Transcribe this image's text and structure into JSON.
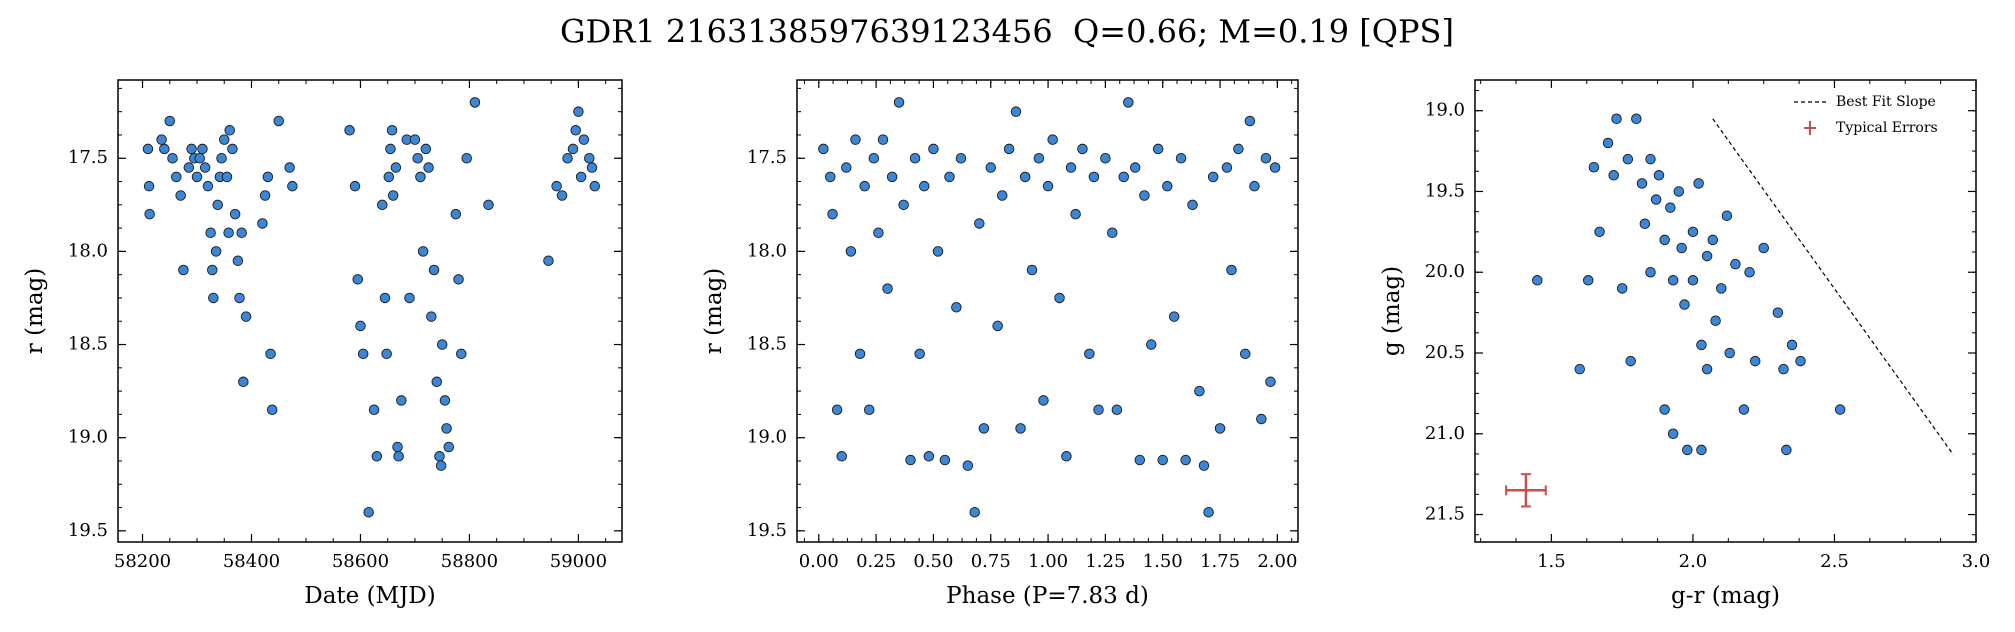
{
  "title": "GDR1 2163138597639123456  Q=0.66; M=0.19 [QPS]",
  "chart_data": [
    {
      "type": "scatter",
      "xlabel": "Date (MJD)",
      "ylabel": "r (mag)",
      "color": "#3b87d6",
      "y_inverted": true,
      "minor_ticks": true,
      "xlim": [
        58155,
        59080
      ],
      "ylim": [
        17.08,
        19.56
      ],
      "xticks": [
        58200,
        58400,
        58600,
        58800,
        59000
      ],
      "yticks": [
        17.5,
        {
          "value": 18,
          "label": "18.0"
        },
        18.5,
        {
          "value": 19,
          "label": "19.0"
        },
        19.5
      ],
      "x": [
        58210,
        58212,
        58213,
        58235,
        58240,
        58250,
        58255,
        58262,
        58270,
        58275,
        58285,
        58290,
        58295,
        58300,
        58305,
        58310,
        58315,
        58320,
        58325,
        58328,
        58330,
        58335,
        58338,
        58342,
        58345,
        58350,
        58355,
        58358,
        58360,
        58365,
        58370,
        58375,
        58378,
        58382,
        58385,
        58390,
        58420,
        58425,
        58430,
        58435,
        58438,
        58450,
        58470,
        58475,
        58580,
        58590,
        58595,
        58600,
        58605,
        58615,
        58625,
        58630,
        58640,
        58645,
        58648,
        58652,
        58655,
        58658,
        58660,
        58665,
        58668,
        58670,
        58675,
        58685,
        58690,
        58700,
        58705,
        58710,
        58715,
        58720,
        58725,
        58730,
        58735,
        58740,
        58745,
        58748,
        58750,
        58755,
        58758,
        58762,
        58775,
        58780,
        58785,
        58795,
        58810,
        58835,
        58945,
        58960,
        58970,
        58980,
        58990,
        58995,
        59000,
        59005,
        59010,
        59020,
        59025,
        59030
      ],
      "values": [
        17.45,
        17.65,
        17.8,
        17.4,
        17.45,
        17.3,
        17.5,
        17.6,
        17.7,
        18.1,
        17.55,
        17.45,
        17.5,
        17.6,
        17.5,
        17.45,
        17.55,
        17.65,
        17.9,
        18.1,
        18.25,
        18.0,
        17.75,
        17.6,
        17.5,
        17.4,
        17.6,
        17.9,
        17.35,
        17.45,
        17.8,
        18.05,
        18.25,
        17.9,
        18.7,
        18.35,
        17.85,
        17.7,
        17.6,
        18.55,
        18.85,
        17.3,
        17.55,
        17.65,
        17.35,
        17.65,
        18.15,
        18.4,
        18.55,
        19.4,
        18.85,
        19.1,
        17.75,
        18.25,
        18.55,
        17.6,
        17.45,
        17.35,
        17.7,
        17.55,
        19.05,
        19.1,
        18.8,
        17.4,
        18.25,
        17.4,
        17.5,
        17.6,
        18.0,
        17.45,
        17.55,
        18.35,
        18.1,
        18.7,
        19.1,
        19.15,
        18.5,
        18.8,
        18.95,
        19.05,
        17.8,
        18.15,
        18.55,
        17.5,
        17.2,
        17.75,
        18.05,
        17.65,
        17.7,
        17.5,
        17.45,
        17.35,
        17.25,
        17.6,
        17.4,
        17.5,
        17.55,
        17.65
      ]
    },
    {
      "type": "scatter",
      "xlabel": "Phase (P=7.83 d)",
      "ylabel": "r (mag)",
      "color": "#3b87d6",
      "y_inverted": true,
      "minor_ticks": true,
      "xlim": [
        -0.095,
        2.09
      ],
      "ylim": [
        17.08,
        19.56
      ],
      "xticks": [
        {
          "value": 0,
          "label": "0.00"
        },
        0.25,
        {
          "value": 0.5,
          "label": "0.50"
        },
        0.75,
        {
          "value": 1,
          "label": "1.00"
        },
        1.25,
        {
          "value": 1.5,
          "label": "1.50"
        },
        1.75,
        {
          "value": 2,
          "label": "2.00"
        }
      ],
      "yticks": [
        17.5,
        {
          "value": 18,
          "label": "18.0"
        },
        18.5,
        {
          "value": 19,
          "label": "19.0"
        },
        19.5
      ],
      "x": [
        0.02,
        0.05,
        0.06,
        0.08,
        0.1,
        0.12,
        0.14,
        0.16,
        0.18,
        0.2,
        0.22,
        0.24,
        0.26,
        0.28,
        0.3,
        0.32,
        0.35,
        0.37,
        0.4,
        0.42,
        0.44,
        0.46,
        0.48,
        0.5,
        0.52,
        0.55,
        0.57,
        0.6,
        0.62,
        0.65,
        0.68,
        0.7,
        0.72,
        0.75,
        0.78,
        0.8,
        0.83,
        0.86,
        0.88,
        0.9,
        0.93,
        0.96,
        0.98,
        1.0,
        1.02,
        1.05,
        1.08,
        1.1,
        1.12,
        1.15,
        1.18,
        1.2,
        1.22,
        1.25,
        1.28,
        1.3,
        1.33,
        1.35,
        1.38,
        1.4,
        1.42,
        1.45,
        1.48,
        1.5,
        1.52,
        1.55,
        1.58,
        1.6,
        1.63,
        1.66,
        1.68,
        1.7,
        1.72,
        1.75,
        1.78,
        1.8,
        1.83,
        1.86,
        1.88,
        1.9,
        1.93,
        1.95,
        1.97,
        1.99
      ],
      "values": [
        17.45,
        17.6,
        17.8,
        18.85,
        19.1,
        17.55,
        18.0,
        17.4,
        18.55,
        17.65,
        18.85,
        17.5,
        17.9,
        17.4,
        18.2,
        17.6,
        17.2,
        17.75,
        19.12,
        17.5,
        18.55,
        17.65,
        19.1,
        17.45,
        18.0,
        19.12,
        17.6,
        18.3,
        17.5,
        19.15,
        19.4,
        17.85,
        18.95,
        17.55,
        18.4,
        17.7,
        17.45,
        17.25,
        18.95,
        17.6,
        18.1,
        17.5,
        18.8,
        17.65,
        17.4,
        18.25,
        19.1,
        17.55,
        17.8,
        17.45,
        18.55,
        17.6,
        18.85,
        17.5,
        17.9,
        18.85,
        17.6,
        17.2,
        17.55,
        19.12,
        17.7,
        18.5,
        17.45,
        19.12,
        17.65,
        18.35,
        17.5,
        19.12,
        17.75,
        18.75,
        19.15,
        19.4,
        17.6,
        18.95,
        17.55,
        18.1,
        17.45,
        18.55,
        17.3,
        17.65,
        18.9,
        17.5,
        18.7,
        17.55
      ]
    },
    {
      "type": "scatter",
      "xlabel": "g-r (mag)",
      "ylabel": "g (mag)",
      "color": "#3b87d6",
      "y_inverted": true,
      "minor_ticks": true,
      "legend": "upper right",
      "xlim": [
        1.23,
        3.0
      ],
      "ylim": [
        18.81,
        21.67
      ],
      "xticks": [
        1.5,
        {
          "value": 2,
          "label": "2.0"
        },
        2.5,
        {
          "value": 3,
          "label": "3.0"
        }
      ],
      "yticks": [
        {
          "value": 19,
          "label": "19.0"
        },
        19.5,
        {
          "value": 20,
          "label": "20.0"
        },
        20.5,
        {
          "value": 21,
          "label": "21.0"
        },
        21.5
      ],
      "x": [
        1.45,
        1.6,
        1.63,
        1.65,
        1.67,
        1.7,
        1.72,
        1.73,
        1.75,
        1.77,
        1.78,
        1.8,
        1.82,
        1.83,
        1.85,
        1.85,
        1.87,
        1.88,
        1.9,
        1.9,
        1.92,
        1.93,
        1.93,
        1.95,
        1.96,
        1.97,
        1.98,
        2.0,
        2.0,
        2.02,
        2.03,
        2.03,
        2.05,
        2.05,
        2.07,
        2.08,
        2.1,
        2.12,
        2.13,
        2.15,
        2.18,
        2.2,
        2.22,
        2.25,
        2.3,
        2.32,
        2.33,
        2.35,
        2.38,
        2.52
      ],
      "values": [
        20.05,
        20.6,
        20.05,
        19.35,
        19.75,
        19.2,
        19.4,
        19.05,
        20.1,
        19.3,
        20.55,
        19.05,
        19.45,
        19.7,
        19.3,
        20.0,
        19.55,
        19.4,
        19.8,
        20.85,
        19.6,
        20.05,
        21.0,
        19.5,
        19.85,
        20.2,
        21.1,
        19.75,
        20.05,
        19.45,
        20.45,
        21.1,
        19.9,
        20.6,
        19.8,
        20.3,
        20.1,
        19.65,
        20.5,
        19.95,
        20.85,
        20.0,
        20.55,
        19.85,
        20.25,
        20.6,
        21.1,
        20.45,
        20.55,
        20.85
      ],
      "best_fit": {
        "name": "Best Fit Slope",
        "color": "#000000",
        "x": [
          2.07,
          2.92
        ],
        "values": [
          19.05,
          21.13
        ]
      },
      "typical_errors": {
        "name": "Typical Errors",
        "color": "#c94f4f",
        "x": 1.41,
        "value": 21.35,
        "xerr": 0.07,
        "yerr": 0.1
      }
    }
  ]
}
